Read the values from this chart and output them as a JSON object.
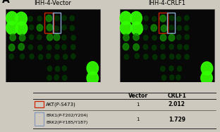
{
  "title_A": "A",
  "title_left": "IHH-4-Vector",
  "title_right": "IHH-4-CRLF1",
  "red_box_color": "#cc2200",
  "blue_box_color": "#88aacc",
  "background": "#cdc9be",
  "panel_bg": "#080808",
  "dot_bright": "#22dd00",
  "dot_mid": "#118800",
  "dot_dim": "#023a00",
  "dot_large_bright": "#33ff00",
  "table_bg": "#cdc9be",
  "header_bold": true,
  "rows": [
    {
      "icon_color": "#cc2200",
      "label1": "AKT(P-S473)",
      "label2": "",
      "vector": "1",
      "crlf1": "2.012"
    },
    {
      "icon_color": "#8899bb",
      "label1": "ERK1(P-T202/Y204)",
      "label2": "ERK2(P-Y185/Y187)",
      "vector": "1",
      "crlf1": "1.729"
    }
  ]
}
